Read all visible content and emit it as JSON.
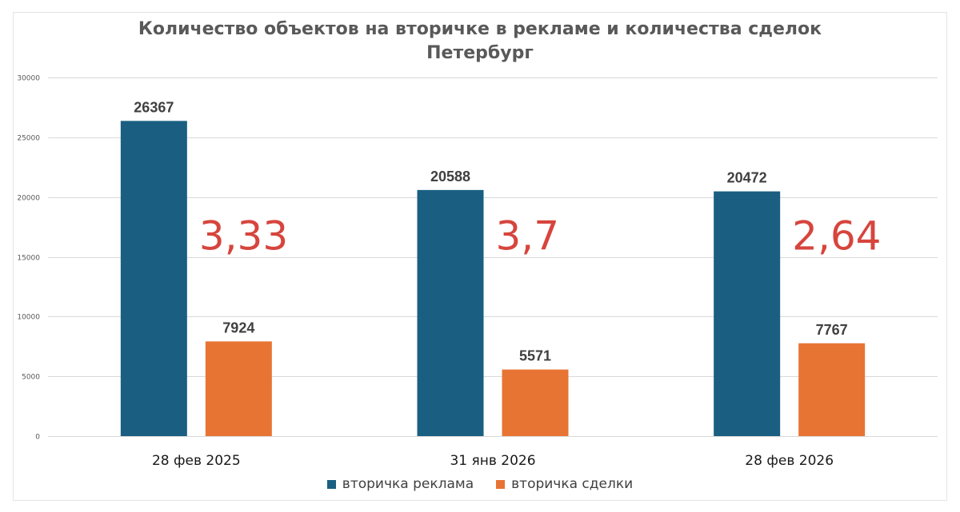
{
  "colors": {
    "series1": "#1a5f82",
    "series2": "#e87434",
    "ratio": "#d6453d",
    "grid": "#d9d9d9"
  },
  "chart_data": {
    "type": "bar",
    "title": "Количество объектов на вторичке в рекламе и количества сделок",
    "subtitle": "Петербург",
    "categories": [
      "28 фев 2025",
      "31 янв 2026",
      "28 фев 2026"
    ],
    "series": [
      {
        "name": "вторичка реклама",
        "values": [
          26367,
          20588,
          20472
        ]
      },
      {
        "name": "вторичка сделки",
        "values": [
          7924,
          5571,
          7767
        ]
      }
    ],
    "annotations": [
      "3,33",
      "3,7",
      "2,64"
    ],
    "ylim": [
      0,
      30000
    ],
    "yticks": [
      0,
      5000,
      10000,
      15000,
      20000,
      25000,
      30000
    ],
    "grid": true,
    "legend": "bottom"
  }
}
